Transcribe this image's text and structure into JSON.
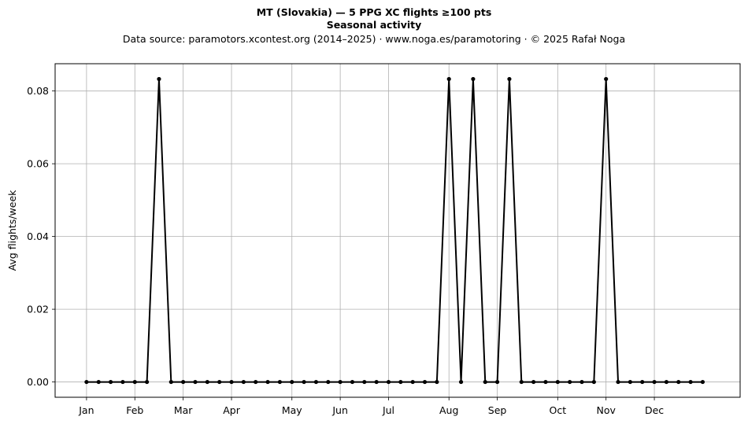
{
  "header": {
    "title_line1": "MT (Slovakia)  —  5 PPG XC flights ≥100 pts",
    "title_line2": "Seasonal activity",
    "subtitle": "Data source: paramotors.xcontest.org (2014–2025)  ·  www.noga.es/paramotoring  ·  © 2025 Rafał Noga"
  },
  "chart_data": {
    "type": "line",
    "title": "MT (Slovakia)  —  5 PPG XC flights ≥100 pts",
    "subtitle": "Seasonal activity",
    "xlabel": "",
    "ylabel": "Avg flights/week",
    "x_unit": "week of year",
    "x_tick_labels": [
      "Jan",
      "Feb",
      "Mar",
      "Apr",
      "May",
      "Jun",
      "Jul",
      "Aug",
      "Sep",
      "Oct",
      "Nov",
      "Dec"
    ],
    "x_tick_weeks": [
      1,
      5,
      9,
      13,
      18,
      22,
      26,
      31,
      35,
      40,
      44,
      48
    ],
    "yticks": [
      0.0,
      0.02,
      0.04,
      0.06,
      0.08
    ],
    "ytick_labels": [
      "0.00",
      "0.02",
      "0.04",
      "0.06",
      "0.08"
    ],
    "ylim": [
      -0.0042,
      0.0875
    ],
    "xlim": [
      -1.6,
      55.1
    ],
    "grid": true,
    "legend": "none",
    "series": [
      {
        "color": "#000000",
        "x": [
          1,
          2,
          3,
          4,
          5,
          6,
          7,
          8,
          9,
          10,
          11,
          12,
          13,
          14,
          15,
          16,
          17,
          18,
          19,
          20,
          21,
          22,
          23,
          24,
          25,
          26,
          27,
          28,
          29,
          30,
          31,
          32,
          33,
          34,
          35,
          36,
          37,
          38,
          39,
          40,
          41,
          42,
          43,
          44,
          45,
          46,
          47,
          48,
          49,
          50,
          51,
          52
        ],
        "values": [
          0,
          0,
          0,
          0,
          0,
          0,
          0.0833,
          0,
          0,
          0,
          0,
          0,
          0,
          0,
          0,
          0,
          0,
          0,
          0,
          0,
          0,
          0,
          0,
          0,
          0,
          0,
          0,
          0,
          0,
          0,
          0.0833,
          0,
          0.0833,
          0,
          0,
          0.0833,
          0,
          0,
          0,
          0,
          0,
          0,
          0,
          0.0833,
          0,
          0,
          0,
          0,
          0,
          0,
          0,
          0
        ]
      }
    ]
  }
}
